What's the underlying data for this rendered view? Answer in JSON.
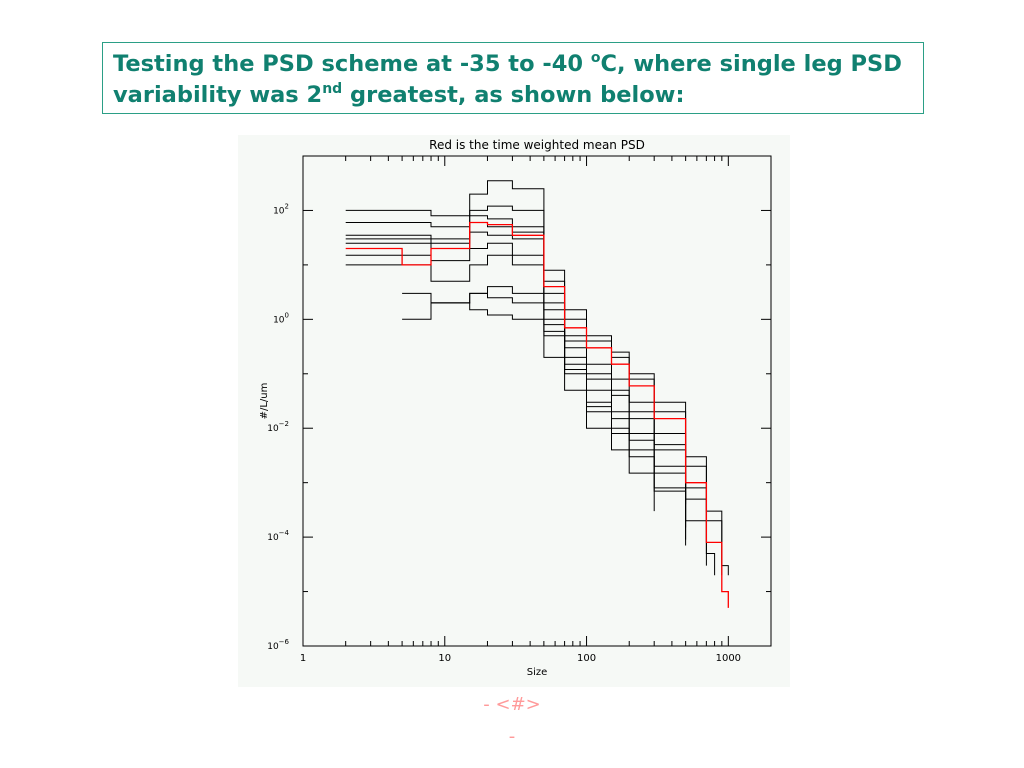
{
  "slide": {
    "title_part1": "Testing the PSD scheme at -35 to -40 ",
    "title_sup1": "o",
    "title_part2": "C, where single leg PSD variability was 2",
    "title_sup2": "nd",
    "title_part3": " greatest, as shown below:",
    "footer_line1": "- <#>",
    "footer_line2": "-",
    "title_color": "#108070",
    "border_color": "#2b9f86",
    "footer_color": "#ff9a9a"
  },
  "chart_data": {
    "type": "line",
    "title": "Red is the time weighted mean PSD",
    "xlabel": "Size",
    "ylabel": "#/L/um",
    "xscale": "log",
    "yscale": "log",
    "xlim": [
      1,
      2000
    ],
    "ylim": [
      1e-06,
      1000
    ],
    "xticks": [
      {
        "value": 1,
        "label": "1"
      },
      {
        "value": 10,
        "label": "10"
      },
      {
        "value": 100,
        "label": "100"
      },
      {
        "value": 1000,
        "label": "1000"
      }
    ],
    "yticks": [
      {
        "value": 1e-06,
        "exp": "−6"
      },
      {
        "value": 0.0001,
        "exp": "−4"
      },
      {
        "value": 0.01,
        "exp": "−2"
      },
      {
        "value": 1,
        "exp": "0"
      },
      {
        "value": 100,
        "exp": "2"
      }
    ],
    "grid": false,
    "legend": "none",
    "series": [
      {
        "color": "#ff0000",
        "points": [
          [
            2,
            20
          ],
          [
            5,
            10
          ],
          [
            8,
            20
          ],
          [
            15,
            60
          ],
          [
            20,
            55
          ],
          [
            30,
            35
          ],
          [
            50,
            4
          ],
          [
            70,
            0.7
          ],
          [
            100,
            0.3
          ],
          [
            150,
            0.15
          ],
          [
            200,
            0.06
          ],
          [
            300,
            0.015
          ],
          [
            500,
            0.001
          ],
          [
            700,
            8e-05
          ],
          [
            900,
            1e-05
          ],
          [
            1000,
            5e-06
          ]
        ]
      },
      {
        "color": "#000000",
        "points": [
          [
            2,
            100
          ],
          [
            5,
            100
          ],
          [
            8,
            80
          ],
          [
            15,
            200
          ],
          [
            20,
            350
          ],
          [
            30,
            250
          ],
          [
            50,
            8
          ],
          [
            70,
            1.5
          ],
          [
            100,
            0.5
          ],
          [
            150,
            0.25
          ],
          [
            200,
            0.1
          ],
          [
            300,
            0.03
          ],
          [
            500,
            0.003
          ],
          [
            700,
            0.0003
          ],
          [
            900,
            3e-05
          ],
          [
            1000,
            2e-05
          ]
        ]
      },
      {
        "color": "#000000",
        "points": [
          [
            2,
            60
          ],
          [
            5,
            60
          ],
          [
            8,
            50
          ],
          [
            15,
            100
          ],
          [
            20,
            120
          ],
          [
            30,
            100
          ],
          [
            50,
            5
          ],
          [
            70,
            1.0
          ],
          [
            100,
            0.4
          ],
          [
            150,
            0.2
          ],
          [
            200,
            0.08
          ],
          [
            300,
            0.02
          ],
          [
            500,
            0.002
          ],
          [
            700,
            0.0002
          ],
          [
            900,
            2e-05
          ]
        ]
      },
      {
        "color": "#000000",
        "points": [
          [
            2,
            35
          ],
          [
            5,
            35
          ],
          [
            8,
            30
          ],
          [
            15,
            80
          ],
          [
            20,
            70
          ],
          [
            30,
            50
          ],
          [
            50,
            3
          ],
          [
            70,
            0.5
          ],
          [
            100,
            0.15
          ],
          [
            150,
            0.08
          ],
          [
            200,
            0.03
          ],
          [
            300,
            0.008
          ],
          [
            500,
            0.0008
          ],
          [
            700,
            8e-05
          ]
        ]
      },
      {
        "color": "#000000",
        "points": [
          [
            2,
            30
          ],
          [
            5,
            30
          ],
          [
            8,
            25
          ],
          [
            15,
            60
          ],
          [
            20,
            50
          ],
          [
            30,
            40
          ],
          [
            50,
            2
          ],
          [
            70,
            0.4
          ],
          [
            100,
            0.1
          ],
          [
            150,
            0.05
          ],
          [
            200,
            0.02
          ],
          [
            300,
            0.005
          ],
          [
            500,
            0.0005
          ],
          [
            700,
            5e-05
          ],
          [
            800,
            2e-05
          ]
        ]
      },
      {
        "color": "#000000",
        "points": [
          [
            2,
            25
          ],
          [
            5,
            25
          ],
          [
            8,
            20
          ],
          [
            15,
            40
          ],
          [
            20,
            35
          ],
          [
            30,
            30
          ],
          [
            50,
            1.5
          ],
          [
            70,
            0.3
          ],
          [
            100,
            0.08
          ],
          [
            150,
            0.04
          ],
          [
            200,
            0.015
          ],
          [
            300,
            0.004
          ],
          [
            500,
            0.0004
          ]
        ]
      },
      {
        "color": "#000000",
        "points": [
          [
            2,
            15
          ],
          [
            5,
            15
          ],
          [
            8,
            12
          ],
          [
            15,
            20
          ],
          [
            20,
            25
          ],
          [
            30,
            15
          ],
          [
            50,
            1
          ],
          [
            70,
            0.2
          ],
          [
            100,
            0.05
          ],
          [
            150,
            0.02
          ],
          [
            200,
            0.008
          ],
          [
            300,
            0.002
          ],
          [
            500,
            0.0002
          ],
          [
            700,
            3e-05
          ]
        ]
      },
      {
        "color": "#000000",
        "points": [
          [
            2,
            10
          ],
          [
            5,
            10
          ],
          [
            8,
            5
          ],
          [
            15,
            10
          ],
          [
            20,
            15
          ],
          [
            30,
            10
          ],
          [
            50,
            0.8
          ],
          [
            70,
            0.15
          ],
          [
            100,
            0.03
          ],
          [
            150,
            0.015
          ],
          [
            200,
            0.006
          ],
          [
            300,
            0.0015
          ],
          [
            500,
            0.00015
          ]
        ]
      },
      {
        "color": "#000000",
        "points": [
          [
            5,
            3
          ],
          [
            8,
            2
          ],
          [
            15,
            3
          ],
          [
            20,
            2.5
          ],
          [
            30,
            2
          ],
          [
            50,
            0.5
          ],
          [
            70,
            0.1
          ],
          [
            100,
            0.02
          ],
          [
            150,
            0.008
          ],
          [
            200,
            0.003
          ],
          [
            300,
            0.0007
          ],
          [
            500,
            7e-05
          ]
        ]
      },
      {
        "color": "#000000",
        "points": [
          [
            5,
            1
          ],
          [
            8,
            2
          ],
          [
            15,
            1.5
          ],
          [
            20,
            1.2
          ],
          [
            30,
            1
          ],
          [
            50,
            0.2
          ],
          [
            70,
            0.05
          ],
          [
            100,
            0.01
          ],
          [
            150,
            0.004
          ],
          [
            200,
            0.0015
          ],
          [
            300,
            0.0003
          ]
        ]
      },
      {
        "color": "#000000",
        "points": [
          [
            8,
            2
          ],
          [
            15,
            3
          ],
          [
            20,
            4
          ],
          [
            30,
            3
          ],
          [
            50,
            0.6
          ],
          [
            70,
            0.12
          ],
          [
            100,
            0.025
          ],
          [
            150,
            0.01
          ],
          [
            200,
            0.004
          ],
          [
            300,
            0.0008
          ],
          [
            500,
            9e-05
          ]
        ]
      }
    ]
  }
}
